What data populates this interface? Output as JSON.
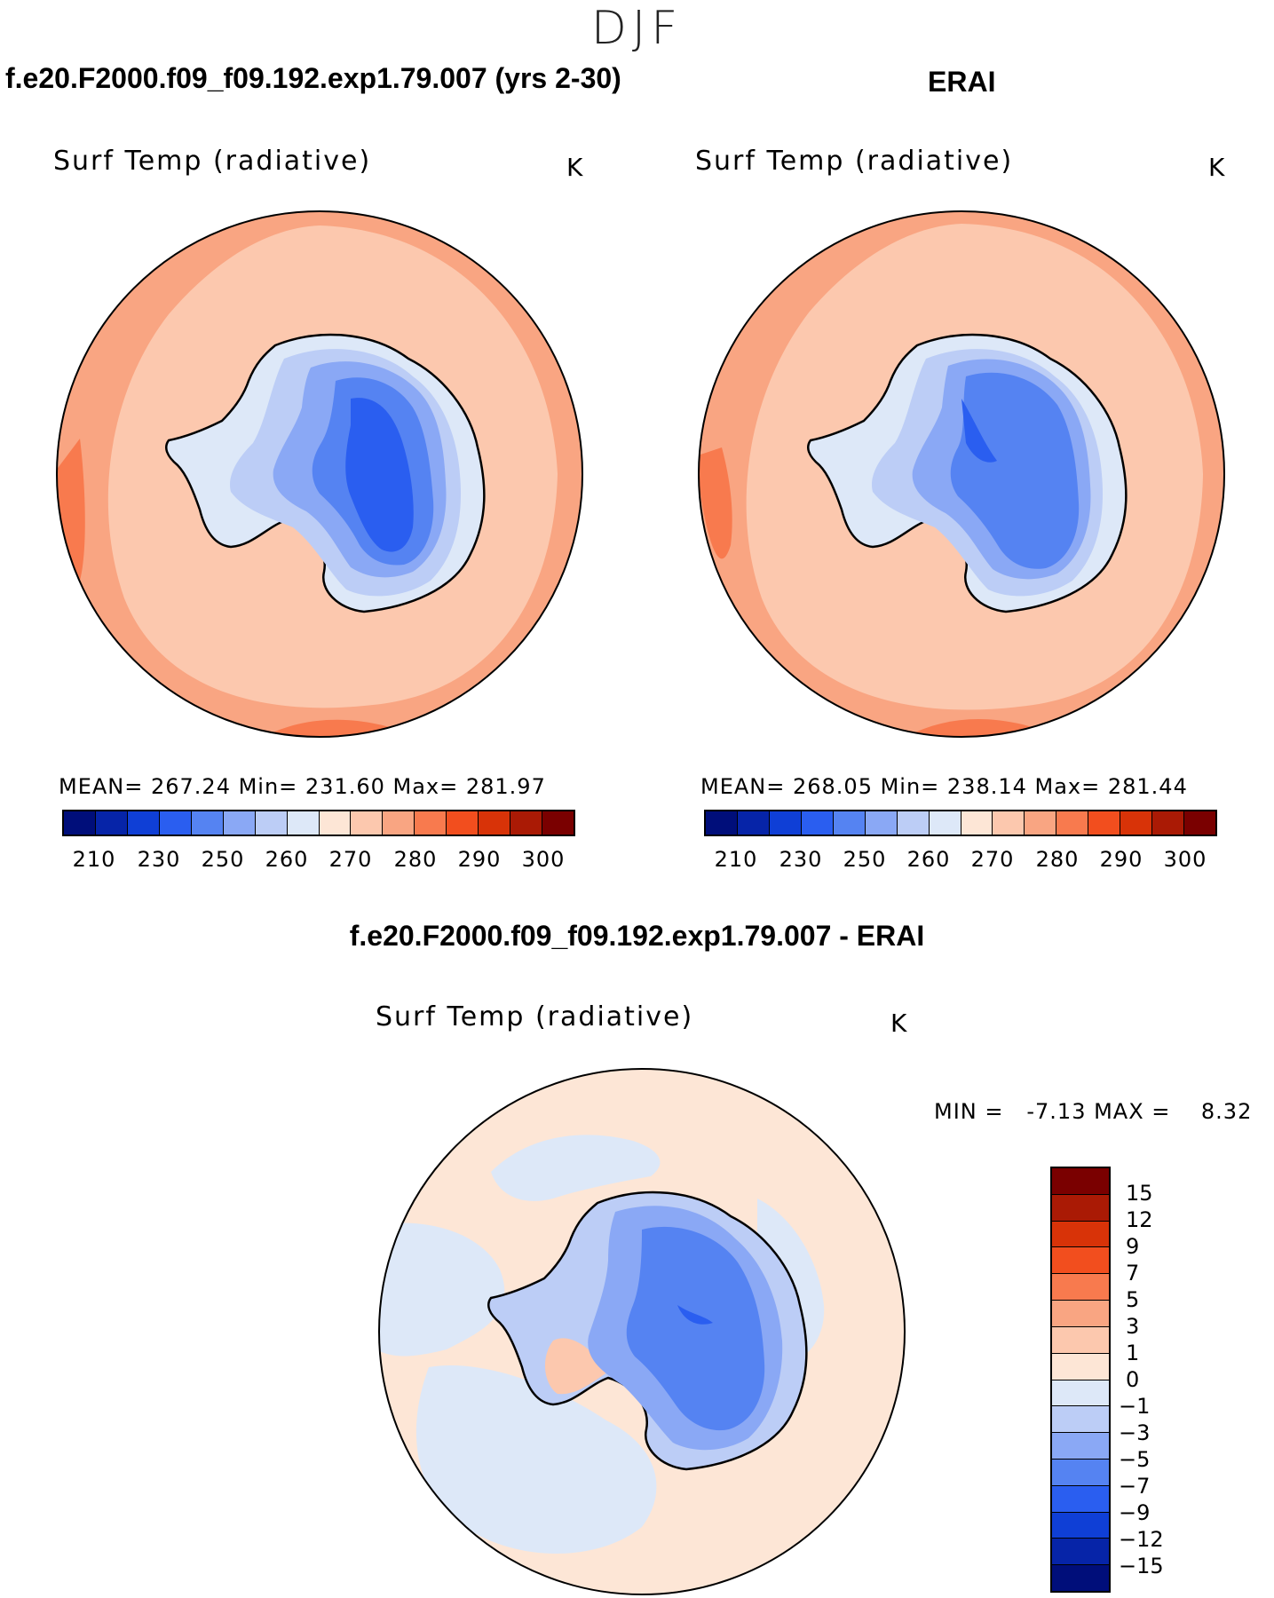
{
  "season": "DJF",
  "panels": {
    "model": {
      "title": "f.e20.F2000.f09_f09.192.exp1.79.007 (yrs 2-30)",
      "variable": "Surf Temp (radiative)",
      "units": "K",
      "stats": "MEAN= 267.24  Min= 231.60  Max= 281.97"
    },
    "obs": {
      "title": "ERAI",
      "variable": "Surf Temp (radiative)",
      "units": "K",
      "stats": "MEAN= 268.05  Min= 238.14  Max= 281.44"
    },
    "diff": {
      "title": "f.e20.F2000.f09_f09.192.exp1.79.007 - ERAI",
      "variable": "Surf Temp (radiative)",
      "units": "K",
      "minmax": "MIN =   -7.13 MAX =    8.32"
    }
  },
  "abs_colorbar": {
    "colors": [
      "#000e7a",
      "#0624a8",
      "#0f3fd6",
      "#2a5ef0",
      "#5583f2",
      "#8aa8f5",
      "#bccdf6",
      "#dde8f8",
      "#fde6d6",
      "#fcc8ae",
      "#f9a582",
      "#f87a4e",
      "#f24e1e",
      "#d83308",
      "#aa1a05",
      "#7a0000"
    ],
    "ticks": [
      "210",
      "230",
      "250",
      "260",
      "270",
      "280",
      "290",
      "300"
    ]
  },
  "diff_colorbar": {
    "colors_top_to_bottom": [
      "#7a0000",
      "#aa1a05",
      "#d83308",
      "#f24e1e",
      "#f87a4e",
      "#f9a582",
      "#fcc8ae",
      "#fde6d6",
      "#dde8f8",
      "#bccdf6",
      "#8aa8f5",
      "#5583f2",
      "#2a5ef0",
      "#0f3fd6",
      "#0624a8",
      "#000e7a"
    ],
    "ticks": [
      "15",
      "12",
      "9",
      "7",
      "5",
      "3",
      "1",
      "0",
      "−1",
      "−3",
      "−5",
      "−7",
      "−9",
      "−12",
      "−15"
    ]
  },
  "map_colors": {
    "warm_outer": "#f9a582",
    "warm_mid": "#fcc8ae",
    "warm_edge": "#f87a4e",
    "cool_1": "#dde8f8",
    "cool_2": "#bccdf6",
    "cool_3": "#8aa8f5",
    "cool_4": "#5583f2",
    "cool_5": "#2a5ef0",
    "diff_bg": "#fde6d6"
  }
}
